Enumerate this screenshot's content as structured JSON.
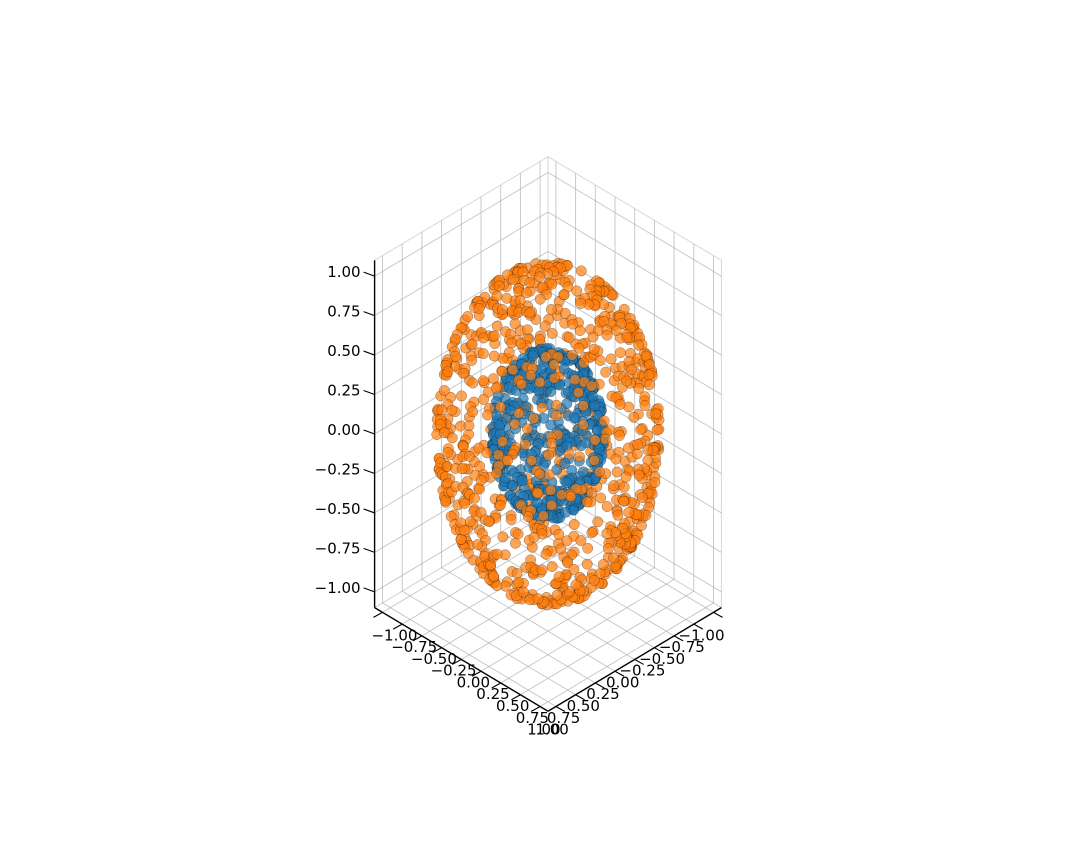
{
  "chart_data": {
    "type": "scatter",
    "projection": "3d",
    "title": "",
    "xlabel": "",
    "ylabel": "",
    "zlabel": "",
    "xlim": [
      -1.1,
      1.1
    ],
    "ylim": [
      -1.1,
      1.1
    ],
    "zlim": [
      -1.1,
      1.1
    ],
    "grid": true,
    "legend": "none",
    "view": {
      "elev": 20,
      "azim": 45
    },
    "ticks": {
      "x": [
        -1.0,
        -0.75,
        -0.5,
        -0.25,
        0.0,
        0.25,
        0.5,
        0.75,
        1.0
      ],
      "y": [
        -1.0,
        -0.75,
        -0.5,
        -0.25,
        0.0,
        0.25,
        0.5,
        0.75,
        1.0
      ],
      "z": [
        -1.0,
        -0.75,
        -0.5,
        -0.25,
        0.0,
        0.25,
        0.5,
        0.75,
        1.0
      ]
    },
    "tick_labels": {
      "x": [
        "−1.00",
        "−0.75",
        "−0.50",
        "−0.25",
        "0.00",
        "0.25",
        "0.50",
        "0.75",
        "1.00"
      ],
      "y": [
        "−1.00",
        "−0.75",
        "−0.50",
        "−0.25",
        "0.00",
        "0.25",
        "0.50",
        "0.75",
        "1.00"
      ],
      "z": [
        "−1.00",
        "−0.75",
        "−0.50",
        "−0.25",
        "0.00",
        "0.25",
        "0.50",
        "0.75",
        "1.00"
      ]
    },
    "series": [
      {
        "shape": "sphere",
        "center": [
          0,
          0,
          0
        ],
        "radius": 0.5,
        "point_count": 450,
        "color": "#1f77b4",
        "edge_color": "#000000",
        "alpha": 0.7
      },
      {
        "shape": "sphere",
        "center": [
          0,
          0,
          0
        ],
        "radius": 1.0,
        "point_count": 900,
        "color": "#ff7f0e",
        "edge_color": "#000000",
        "alpha": 0.7
      }
    ]
  }
}
